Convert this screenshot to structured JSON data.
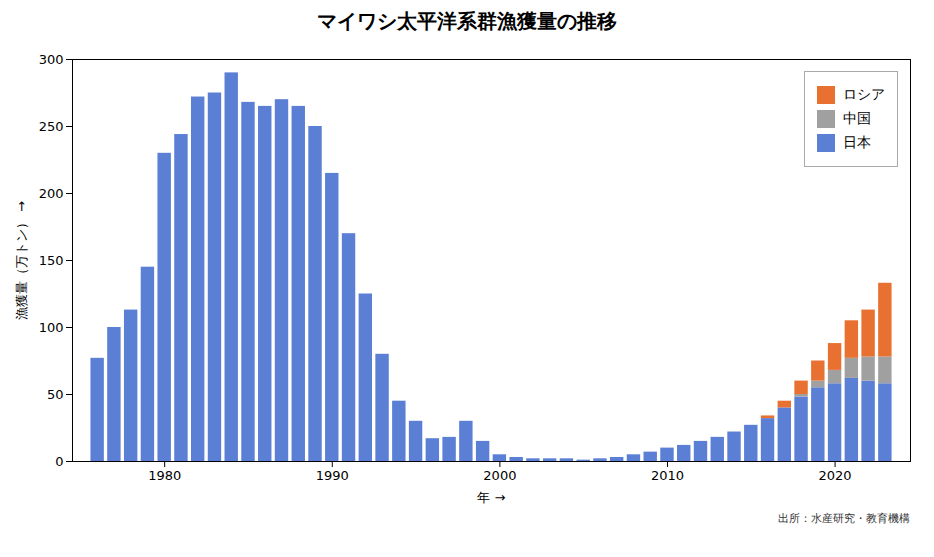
{
  "chart_data": {
    "type": "bar",
    "stacked": true,
    "title": "マイワシ太平洋系群漁獲量の推移",
    "xlabel": "年",
    "ylabel": "漁獲量（万トン）",
    "annotations": [
      "出所：水産研究・教育機構"
    ],
    "x": [
      1976,
      1977,
      1978,
      1979,
      1980,
      1981,
      1982,
      1983,
      1984,
      1985,
      1986,
      1987,
      1988,
      1989,
      1990,
      1991,
      1992,
      1993,
      1994,
      1995,
      1996,
      1997,
      1998,
      1999,
      2000,
      2001,
      2002,
      2003,
      2004,
      2005,
      2006,
      2007,
      2008,
      2009,
      2010,
      2011,
      2012,
      2013,
      2014,
      2015,
      2016,
      2017,
      2018,
      2019,
      2020,
      2021,
      2022,
      2023
    ],
    "series": [
      {
        "name": "日本",
        "color": "#5B7FD4",
        "values": [
          77,
          100,
          113,
          145,
          230,
          244,
          272,
          275,
          290,
          268,
          265,
          270,
          265,
          250,
          215,
          170,
          125,
          80,
          45,
          30,
          17,
          18,
          30,
          15,
          5,
          3,
          2,
          2,
          2,
          1,
          2,
          3,
          5,
          7,
          10,
          12,
          15,
          18,
          22,
          27,
          32,
          40,
          48,
          55,
          58,
          62,
          60,
          58
        ]
      },
      {
        "name": "中国",
        "color": "#A0A0A0",
        "values": [
          0,
          0,
          0,
          0,
          0,
          0,
          0,
          0,
          0,
          0,
          0,
          0,
          0,
          0,
          0,
          0,
          0,
          0,
          0,
          0,
          0,
          0,
          0,
          0,
          0,
          0,
          0,
          0,
          0,
          0,
          0,
          0,
          0,
          0,
          0,
          0,
          0,
          0,
          0,
          0,
          0,
          0,
          2,
          5,
          10,
          15,
          18,
          20
        ]
      },
      {
        "name": "ロシア",
        "color": "#E87030",
        "values": [
          0,
          0,
          0,
          0,
          0,
          0,
          0,
          0,
          0,
          0,
          0,
          0,
          0,
          0,
          0,
          0,
          0,
          0,
          0,
          0,
          0,
          0,
          0,
          0,
          0,
          0,
          0,
          0,
          0,
          0,
          0,
          0,
          0,
          0,
          0,
          0,
          0,
          0,
          0,
          0,
          2,
          5,
          10,
          15,
          20,
          28,
          35,
          55
        ]
      }
    ],
    "xlim": [
      1974.5,
      2024.5
    ],
    "xticks": [
      1980,
      1990,
      2000,
      2010,
      2020
    ],
    "ylim": [
      0,
      300
    ],
    "yticks": [
      0,
      50,
      100,
      150,
      200,
      250,
      300
    ],
    "grid": false,
    "legend": "upper right"
  }
}
